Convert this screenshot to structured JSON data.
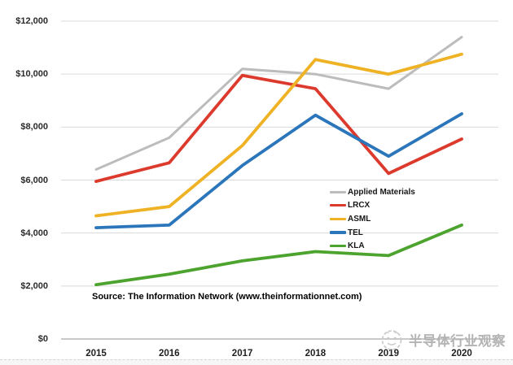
{
  "chart_data": {
    "type": "line",
    "title": "",
    "xlabel": "",
    "ylabel": "",
    "categories": [
      "2015",
      "2016",
      "2017",
      "2018",
      "2019",
      "2020"
    ],
    "series": [
      {
        "name": "Applied Materials",
        "color": "#bcbcbc",
        "values": [
          6400,
          7600,
          10200,
          10000,
          9450,
          11400
        ]
      },
      {
        "name": "LRCX",
        "color": "#dc3a2c",
        "values": [
          5950,
          6650,
          9950,
          9450,
          6250,
          7550
        ]
      },
      {
        "name": "ASML",
        "color": "#eeb224",
        "values": [
          4650,
          5000,
          7300,
          10550,
          10000,
          10750
        ]
      },
      {
        "name": "TEL",
        "color": "#2b76ba",
        "values": [
          4200,
          4300,
          6550,
          8450,
          6900,
          8500
        ]
      },
      {
        "name": "KLA",
        "color": "#4ca32e",
        "values": [
          2050,
          2450,
          2950,
          3300,
          3150,
          4300
        ]
      }
    ],
    "ylim": [
      0,
      12000
    ],
    "ytick_step": 2000,
    "ytick_labels": [
      "$0",
      "$2,000",
      "$4,000",
      "$6,000",
      "$8,000",
      "$10,000",
      "$12,000"
    ],
    "grid": "horizontal-only",
    "legend_position": "middle-right"
  },
  "source_note": "Source: The Information Network (www.theinformationnet.com)",
  "watermark": {
    "text": "半导体行业观察"
  },
  "colors": {
    "gridline": "#d9d9d9",
    "axis_line": "#b7b7b7",
    "tick_text": "#2b2b2b",
    "watermark_gray": "#c9c9c9"
  }
}
